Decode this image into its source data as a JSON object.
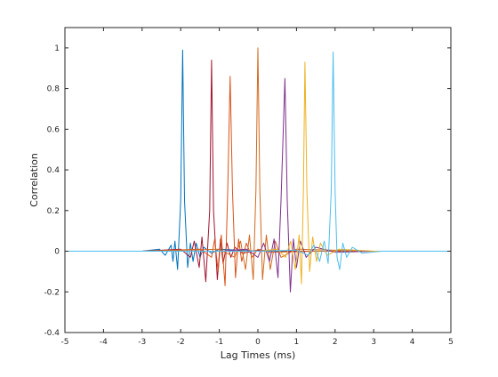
{
  "chart_data": {
    "type": "line",
    "title": "",
    "xlabel": "Lag Times (ms)",
    "ylabel": "Correlation",
    "xlim": [
      -5,
      5
    ],
    "ylim": [
      -0.4,
      1.1
    ],
    "xticks": [
      -5,
      -4,
      -3,
      -2,
      -1,
      0,
      1,
      2,
      3,
      4,
      5
    ],
    "xtick_labels": [
      "-5",
      "-4",
      "-3",
      "-2",
      "-1",
      "0",
      "1",
      "2",
      "3",
      "4",
      "5"
    ],
    "yticks": [
      -0.4,
      -0.2,
      0,
      0.2,
      0.4,
      0.6,
      0.8,
      1
    ],
    "ytick_labels": [
      "-0.4",
      "-0.2",
      "0",
      "0.2",
      "0.4",
      "0.6",
      "0.8",
      "1"
    ],
    "grid": false,
    "legend": false,
    "series": [
      {
        "color": "#0072BD",
        "values": [
          [
            -5.0,
            0
          ],
          [
            -3.0,
            0
          ],
          [
            -2.55,
            0.01
          ],
          [
            -2.4,
            -0.02
          ],
          [
            -2.25,
            0.03
          ],
          [
            -2.2,
            -0.05
          ],
          [
            -2.15,
            0.05
          ],
          [
            -2.08,
            -0.09
          ],
          [
            -2.0,
            0.25
          ],
          [
            -1.95,
            0.99
          ],
          [
            -1.9,
            0.25
          ],
          [
            -1.82,
            -0.08
          ],
          [
            -1.75,
            0.04
          ],
          [
            -1.68,
            -0.05
          ],
          [
            -1.6,
            0.04
          ],
          [
            -1.5,
            -0.03
          ],
          [
            -1.4,
            0.02
          ],
          [
            -1.2,
            -0.01
          ],
          [
            -1.0,
            0.01
          ],
          [
            0.0,
            0
          ],
          [
            5.0,
            0
          ]
        ]
      },
      {
        "color": "#A2142F",
        "values": [
          [
            -5.0,
            0
          ],
          [
            -3.0,
            0
          ],
          [
            -2.0,
            0.01
          ],
          [
            -1.75,
            -0.03
          ],
          [
            -1.65,
            0.05
          ],
          [
            -1.52,
            -0.08
          ],
          [
            -1.45,
            0.07
          ],
          [
            -1.35,
            -0.15
          ],
          [
            -1.25,
            0.2
          ],
          [
            -1.2,
            0.94
          ],
          [
            -1.15,
            0.2
          ],
          [
            -1.05,
            -0.14
          ],
          [
            -0.97,
            0.06
          ],
          [
            -0.9,
            -0.06
          ],
          [
            -0.8,
            0.04
          ],
          [
            -0.7,
            -0.03
          ],
          [
            -0.6,
            0.02
          ],
          [
            -0.4,
            -0.01
          ],
          [
            0.0,
            0.005
          ],
          [
            1.0,
            0
          ],
          [
            5.0,
            0
          ]
        ]
      },
      {
        "color": "#D95319",
        "values": [
          [
            -5.0,
            0
          ],
          [
            -3.0,
            0
          ],
          [
            -1.5,
            0.01
          ],
          [
            -1.2,
            -0.03
          ],
          [
            -1.12,
            0.06
          ],
          [
            -1.03,
            -0.1
          ],
          [
            -0.95,
            0.08
          ],
          [
            -0.85,
            -0.17
          ],
          [
            -0.78,
            0.3
          ],
          [
            -0.72,
            0.86
          ],
          [
            -0.66,
            0.3
          ],
          [
            -0.58,
            -0.13
          ],
          [
            -0.5,
            0.06
          ],
          [
            -0.42,
            -0.05
          ],
          [
            -0.3,
            0.04
          ],
          [
            -0.15,
            -0.03
          ],
          [
            0.0,
            0.01
          ],
          [
            0.3,
            -0.005
          ],
          [
            1.5,
            0
          ],
          [
            5.0,
            0
          ]
        ]
      },
      {
        "color": "#D2691E",
        "values": [
          [
            -5.0,
            0
          ],
          [
            -3.0,
            0
          ],
          [
            -1.0,
            0.01
          ],
          [
            -0.6,
            -0.03
          ],
          [
            -0.45,
            0.05
          ],
          [
            -0.32,
            -0.09
          ],
          [
            -0.22,
            0.08
          ],
          [
            -0.12,
            -0.14
          ],
          [
            -0.05,
            0.3
          ],
          [
            0.0,
            1.0
          ],
          [
            0.05,
            0.3
          ],
          [
            0.12,
            -0.14
          ],
          [
            0.22,
            0.08
          ],
          [
            0.32,
            -0.09
          ],
          [
            0.45,
            0.05
          ],
          [
            0.6,
            -0.03
          ],
          [
            1.0,
            0.01
          ],
          [
            3.0,
            0
          ],
          [
            5.0,
            0
          ]
        ]
      },
      {
        "color": "#7E2F8E",
        "values": [
          [
            -5.0,
            0
          ],
          [
            -3.0,
            0
          ],
          [
            -1.0,
            0
          ],
          [
            -0.3,
            0.01
          ],
          [
            0.0,
            -0.03
          ],
          [
            0.15,
            0.04
          ],
          [
            0.3,
            -0.05
          ],
          [
            0.42,
            0.06
          ],
          [
            0.52,
            -0.13
          ],
          [
            0.6,
            0.25
          ],
          [
            0.7,
            0.85
          ],
          [
            0.76,
            0.25
          ],
          [
            0.84,
            -0.2
          ],
          [
            0.92,
            0.06
          ],
          [
            1.0,
            -0.08
          ],
          [
            1.1,
            0.05
          ],
          [
            1.25,
            -0.03
          ],
          [
            1.5,
            0.02
          ],
          [
            2.0,
            -0.005
          ],
          [
            3.0,
            0
          ],
          [
            5.0,
            0
          ]
        ]
      },
      {
        "color": "#EDB120",
        "values": [
          [
            -5.0,
            0
          ],
          [
            -3.0,
            0
          ],
          [
            0.0,
            0
          ],
          [
            0.5,
            0.01
          ],
          [
            0.72,
            -0.03
          ],
          [
            0.85,
            0.05
          ],
          [
            0.97,
            -0.09
          ],
          [
            1.07,
            0.08
          ],
          [
            1.13,
            -0.16
          ],
          [
            1.18,
            0.3
          ],
          [
            1.22,
            0.93
          ],
          [
            1.27,
            0.3
          ],
          [
            1.34,
            -0.1
          ],
          [
            1.42,
            0.07
          ],
          [
            1.52,
            -0.05
          ],
          [
            1.62,
            0.04
          ],
          [
            1.8,
            -0.02
          ],
          [
            2.1,
            0.01
          ],
          [
            3.0,
            0
          ],
          [
            5.0,
            0
          ]
        ]
      },
      {
        "color": "#4DBEEE",
        "values": [
          [
            -5.0,
            0
          ],
          [
            -3.0,
            0
          ],
          [
            0.0,
            0
          ],
          [
            1.0,
            0.005
          ],
          [
            1.3,
            -0.02
          ],
          [
            1.45,
            0.03
          ],
          [
            1.6,
            -0.05
          ],
          [
            1.72,
            0.05
          ],
          [
            1.82,
            -0.06
          ],
          [
            1.9,
            0.3
          ],
          [
            1.95,
            0.98
          ],
          [
            2.0,
            0.3
          ],
          [
            2.05,
            -0.03
          ],
          [
            2.12,
            -0.09
          ],
          [
            2.2,
            0.04
          ],
          [
            2.3,
            -0.03
          ],
          [
            2.45,
            0.02
          ],
          [
            2.7,
            -0.01
          ],
          [
            3.2,
            0
          ],
          [
            5.0,
            0
          ]
        ]
      }
    ]
  }
}
